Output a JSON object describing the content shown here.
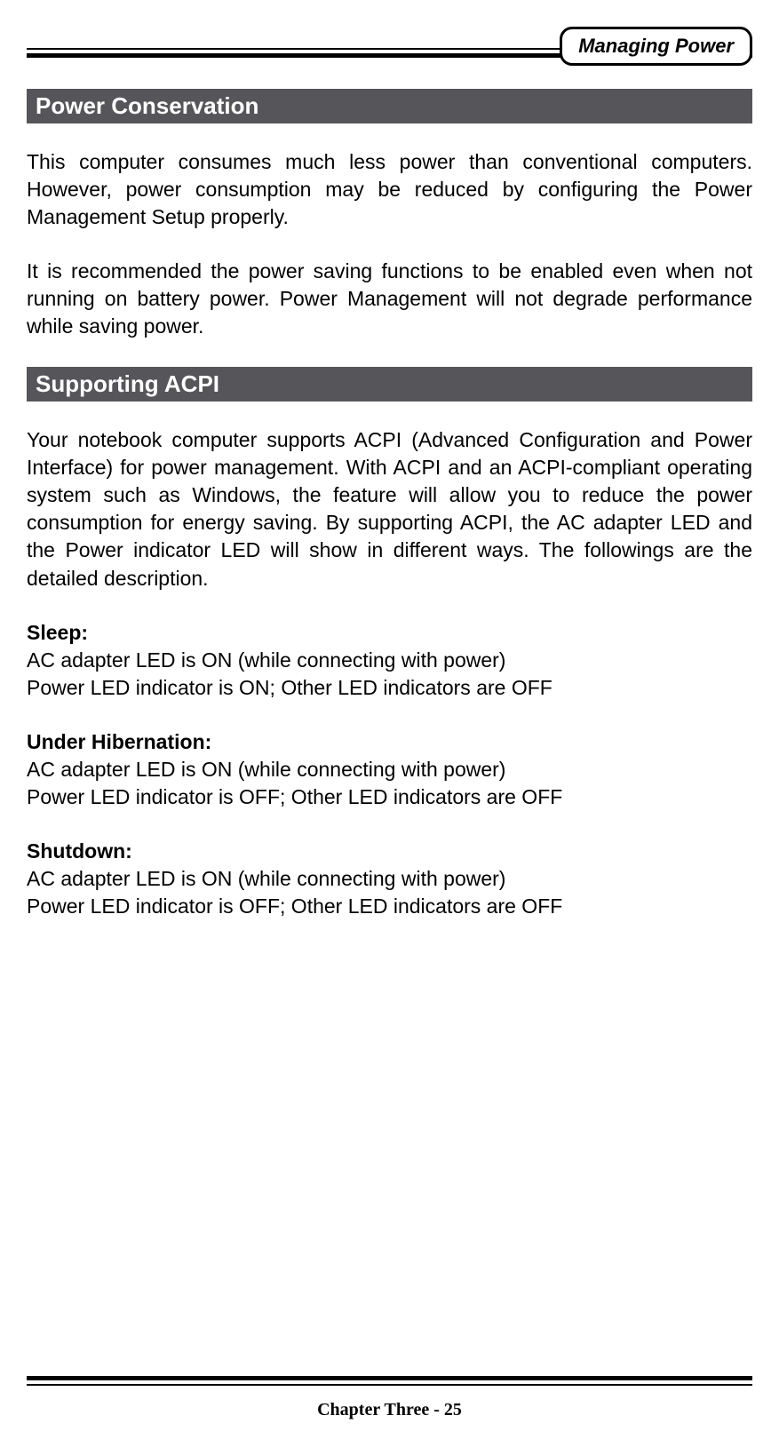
{
  "header": {
    "badge": "Managing Power"
  },
  "colors": {
    "heading_bg": "#55555a",
    "heading_text": "#ffffff",
    "body_text": "#000000",
    "rule_color": "#000000",
    "page_bg": "#ffffff"
  },
  "typography": {
    "body_fontsize": 23,
    "heading_fontsize": 26,
    "badge_fontsize": 22,
    "footer_fontsize": 20
  },
  "sections": [
    {
      "title": "Power Conservation",
      "paragraphs": [
        "This computer consumes much less power than conventional computers. However, power consumption may be reduced by configuring the Power Management Setup properly.",
        "It is recommended the power saving functions to be enabled even when not running on battery power. Power Management will not degrade performance while saving power."
      ]
    },
    {
      "title": "Supporting ACPI",
      "paragraphs": [
        "Your notebook computer supports ACPI (Advanced Configuration and Power Interface) for power management. With ACPI and an ACPI-compliant operating system such as Windows, the feature will allow you to reduce the power consumption for energy saving. By supporting ACPI, the AC adapter LED and the Power indicator LED will show in different ways. The followings are the detailed description."
      ],
      "states": [
        {
          "label": "Sleep:",
          "lines": [
            "AC adapter LED is ON (while connecting with power)",
            "Power LED indicator is ON; Other LED indicators are OFF"
          ]
        },
        {
          "label": "Under Hibernation:",
          "lines": [
            "AC adapter LED is ON (while connecting with power)",
            "Power LED indicator is OFF; Other LED indicators are OFF"
          ]
        },
        {
          "label": "Shutdown:",
          "lines": [
            "AC adapter LED is ON (while connecting with power)",
            "Power LED indicator is OFF; Other LED indicators are OFF"
          ]
        }
      ]
    }
  ],
  "footer": {
    "text": "Chapter Three - 25"
  }
}
